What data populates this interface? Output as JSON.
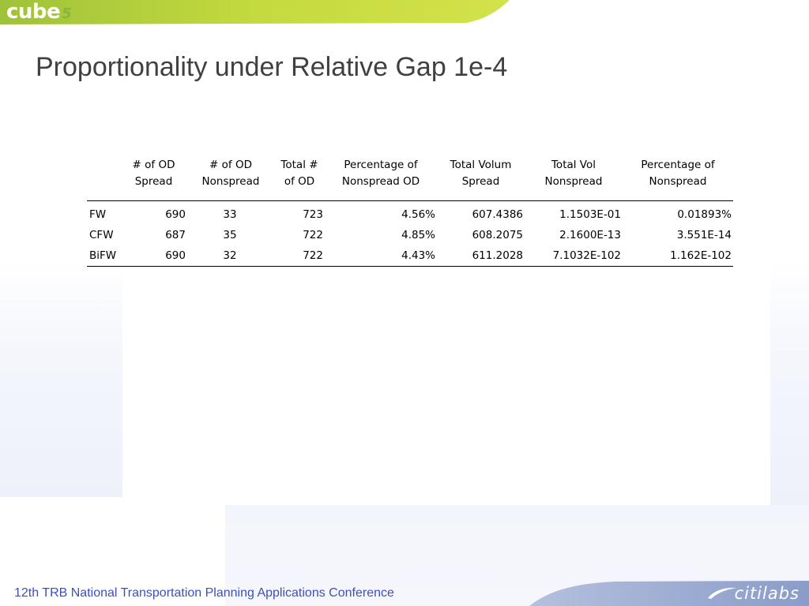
{
  "header": {
    "logo_text": "cube",
    "logo_number": "5"
  },
  "slide": {
    "title": "Proportionality under Relative Gap 1e-4"
  },
  "table": {
    "columns": [
      {
        "line1": "",
        "line2": ""
      },
      {
        "line1": "# of OD",
        "line2": "Spread"
      },
      {
        "line1": "# of OD",
        "line2": "Nonspread"
      },
      {
        "line1": "Total #",
        "line2": "of OD"
      },
      {
        "line1": "Percentage of",
        "line2": "Nonspread OD"
      },
      {
        "line1": "Total Volum",
        "line2": "Spread"
      },
      {
        "line1": "Total Vol",
        "line2": "Nonspread"
      },
      {
        "line1": "Percentage of",
        "line2": "Nonspread"
      }
    ],
    "rows": [
      {
        "label": "FW",
        "od_spread": "690",
        "od_nonspread": "33",
        "total_od": "723",
        "pct_nonspread_od": "4.56%",
        "vol_spread": "607.4386",
        "vol_nonspread": "1.1503E-01",
        "pct_nonspread": "0.01893%"
      },
      {
        "label": "CFW",
        "od_spread": "687",
        "od_nonspread": "35",
        "total_od": "722",
        "pct_nonspread_od": "4.85%",
        "vol_spread": "608.2075",
        "vol_nonspread": "2.1600E-13",
        "pct_nonspread": "3.551E-14"
      },
      {
        "label": "BiFW",
        "od_spread": "690",
        "od_nonspread": "32",
        "total_od": "722",
        "pct_nonspread_od": "4.43%",
        "vol_spread": "611.2028",
        "vol_nonspread": "7.1032E-102",
        "pct_nonspread": "1.162E-102"
      }
    ]
  },
  "footer": {
    "conference": "12th TRB National Transportation Planning Applications Conference",
    "brand": "citilabs"
  },
  "colors": {
    "banner_green": "#c8dc3c",
    "title_gray": "#404040",
    "footer_blue": "#3b4fc0",
    "footer_banner_blue": "#9aaad0"
  }
}
